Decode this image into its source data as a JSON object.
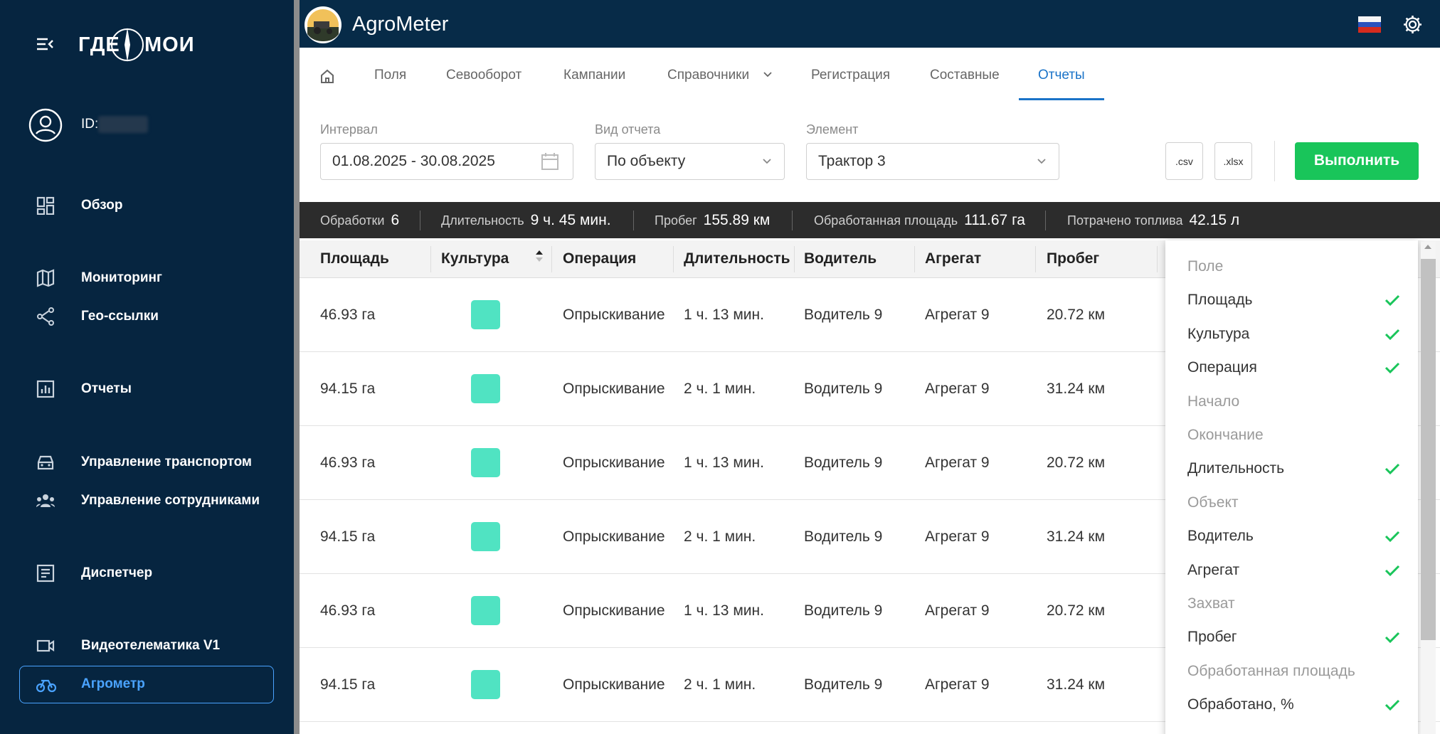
{
  "sidebar": {
    "brand_left": "ГДЕ",
    "brand_right": "МОИ",
    "user_id_label": "ID:",
    "menu": [
      "Обзор",
      "Мониторинг",
      "Гео-ссылки",
      "Отчеты",
      "Управление транспортом",
      "Управление сотрудниками",
      "Диспетчер",
      "Видеотелематика V1",
      "Агрометр"
    ],
    "active": 8
  },
  "header": {
    "app_title": "AgroMeter"
  },
  "tabs": {
    "items": [
      "Поля",
      "Севооборот",
      "Кампании",
      "Справочники",
      "Регистрация",
      "Составные",
      "Отчеты"
    ],
    "active": 6
  },
  "filters": [
    {
      "label": "Интервал",
      "value": "01.08.2025 - 30.08.2025"
    },
    {
      "label": "Вид отчета",
      "value": "По объекту"
    },
    {
      "label": "Элемент",
      "value": "Трактор 3"
    }
  ],
  "actions": {
    "csv": ".csv",
    "xlsx": ".xlsx",
    "run": "Выполнить"
  },
  "summary": [
    {
      "label": "Обработки",
      "value": "6"
    },
    {
      "label": "Длительность",
      "value": "9 ч. 45 мин."
    },
    {
      "label": "Пробег",
      "value": "155.89 км"
    },
    {
      "label": "Обработанная площадь",
      "value": "111.67 га"
    },
    {
      "label": "Потрачено топлива",
      "value": "42.15 л"
    }
  ],
  "table": {
    "columns": [
      "Площадь",
      "Культура",
      "Операция",
      "Длительность",
      "Водитель",
      "Агрегат",
      "Пробег"
    ],
    "rows": [
      [
        "46.93 га",
        "#50e3c2",
        "Опрыскивание",
        "1 ч. 13 мин.",
        "Водитель 9",
        "Агрегат 9",
        "20.72 км"
      ],
      [
        "94.15 га",
        "#50e3c2",
        "Опрыскивание",
        "2 ч. 1 мин.",
        "Водитель 9",
        "Агрегат 9",
        "31.24 км"
      ],
      [
        "46.93 га",
        "#50e3c2",
        "Опрыскивание",
        "1 ч. 13 мин.",
        "Водитель 9",
        "Агрегат 9",
        "20.72 км"
      ],
      [
        "94.15 га",
        "#50e3c2",
        "Опрыскивание",
        "2 ч. 1 мин.",
        "Водитель 9",
        "Агрегат 9",
        "31.24 км"
      ],
      [
        "46.93 га",
        "#50e3c2",
        "Опрыскивание",
        "1 ч. 13 мин.",
        "Водитель 9",
        "Агрегат 9",
        "20.72 км"
      ],
      [
        "94.15 га",
        "#50e3c2",
        "Опрыскивание",
        "2 ч. 1 мин.",
        "Водитель 9",
        "Агрегат 9",
        "31.24 км"
      ]
    ]
  },
  "column_menu": {
    "items": [
      {
        "label": "Поле",
        "checked": false
      },
      {
        "label": "Площадь",
        "checked": true
      },
      {
        "label": "Культура",
        "checked": true
      },
      {
        "label": "Операция",
        "checked": true
      },
      {
        "label": "Начало",
        "checked": false
      },
      {
        "label": "Окончание",
        "checked": false
      },
      {
        "label": "Длительность",
        "checked": true
      },
      {
        "label": "Объект",
        "checked": false
      },
      {
        "label": "Водитель",
        "checked": true
      },
      {
        "label": "Агрегат",
        "checked": true
      },
      {
        "label": "Захват",
        "checked": false
      },
      {
        "label": "Пробег",
        "checked": true
      },
      {
        "label": "Обработанная площадь",
        "checked": false
      },
      {
        "label": "Обработано, %",
        "checked": true
      }
    ]
  }
}
